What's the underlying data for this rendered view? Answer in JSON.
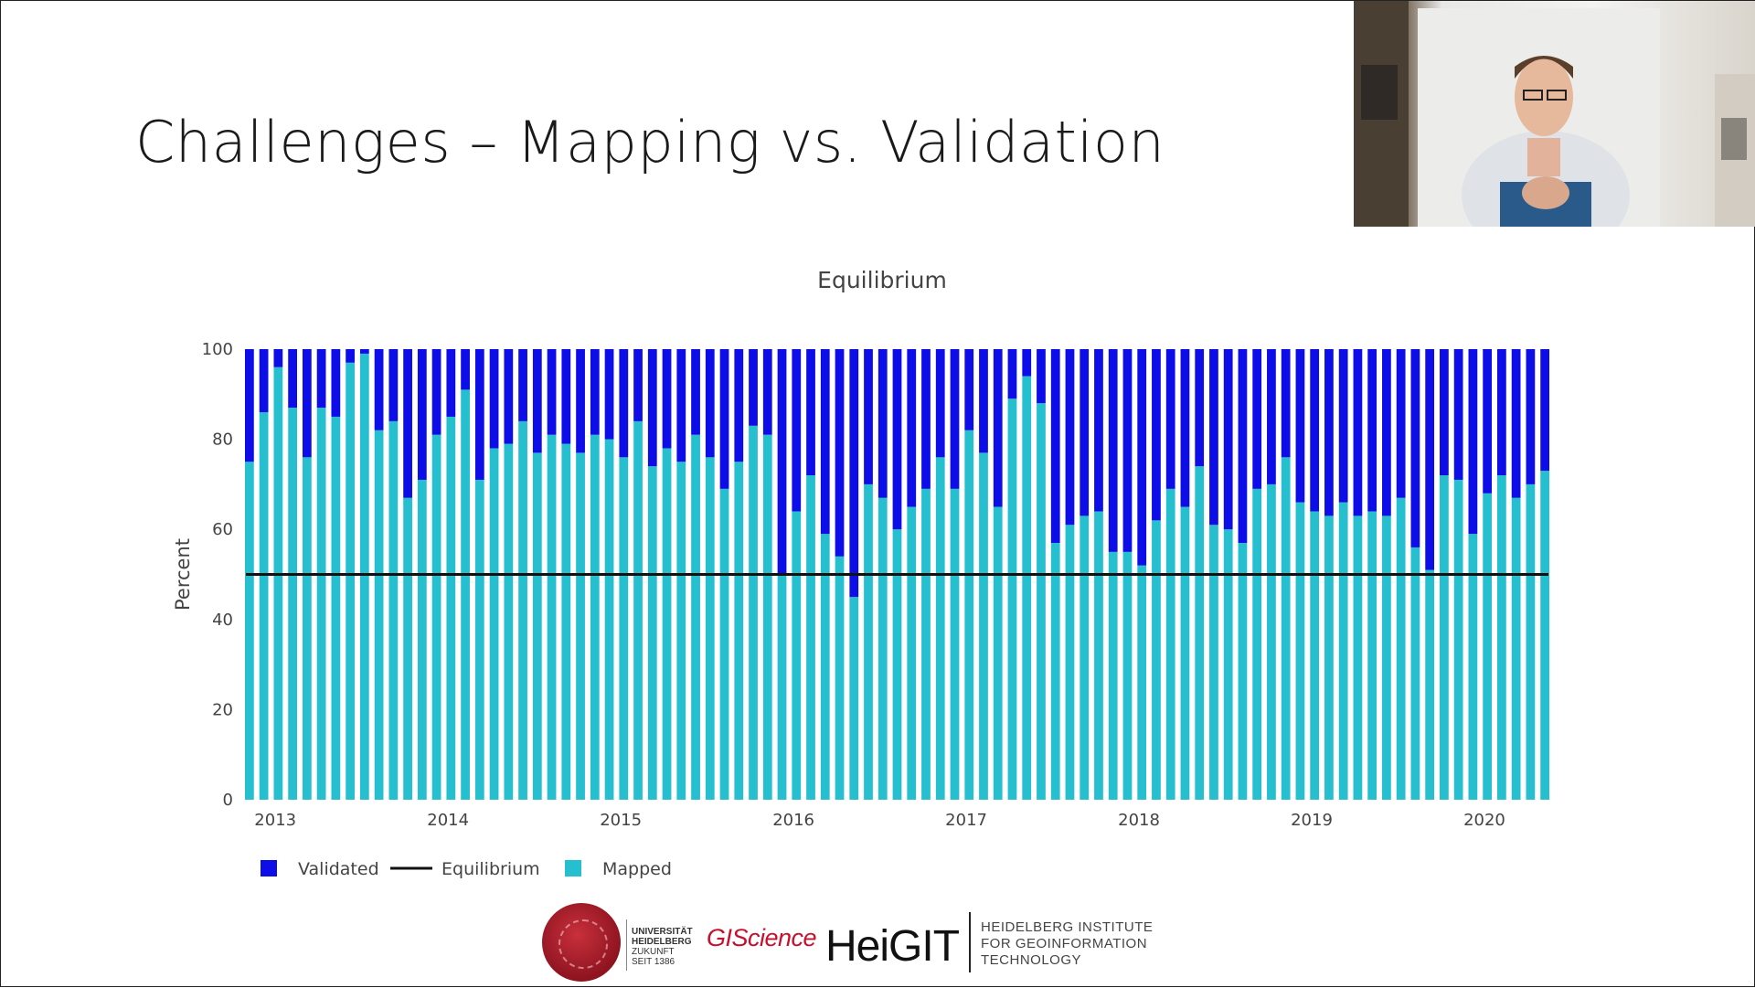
{
  "slide": {
    "title": "Challenges – Mapping vs. Validation"
  },
  "logos": {
    "uni_line1": "UNIVERSITÄT",
    "uni_line2": "HEIDELBERG",
    "uni_line3": "ZUKUNFT",
    "uni_line4": "SEIT 1386",
    "giscience": "GIScience",
    "heigit": "HeiGIT",
    "heigit_sub1": "HEIDELBERG INSTITUTE",
    "heigit_sub2": "FOR GEOINFORMATION",
    "heigit_sub3": "TECHNOLOGY"
  },
  "webcam": {
    "icon": "presenter-video-icon"
  },
  "chart_data": {
    "type": "bar",
    "stacked": true,
    "title": "Equilibrium",
    "xlabel": "",
    "ylabel": "Percent",
    "ylim": [
      0,
      100
    ],
    "yticks": [
      0,
      20,
      40,
      60,
      80,
      100
    ],
    "xticks": [
      "2013",
      "2014",
      "2015",
      "2016",
      "2017",
      "2018",
      "2019",
      "2020"
    ],
    "months_per_year": 12,
    "start_index_offset": 1.8,
    "colors": {
      "Validated": "#0d0de8",
      "Mapped": "#26bfcf",
      "Equilibrium": "#111111"
    },
    "series": [
      {
        "name": "Mapped",
        "values": [
          75,
          86,
          96,
          87,
          76,
          87,
          85,
          97,
          99,
          82,
          84,
          67,
          71,
          81,
          85,
          91,
          71,
          78,
          79,
          84,
          77,
          81,
          79,
          77,
          81,
          80,
          76,
          84,
          74,
          78,
          75,
          81,
          76,
          69,
          75,
          83,
          81,
          50,
          64,
          72,
          59,
          54,
          45,
          70,
          67,
          60,
          65,
          69,
          76,
          69,
          82,
          77,
          65,
          89,
          94,
          88,
          57,
          61,
          63,
          64,
          55,
          55,
          52,
          62,
          69,
          65,
          74,
          61,
          60,
          57,
          69,
          70,
          76,
          66,
          64,
          63,
          66,
          63,
          64,
          63,
          67,
          56,
          51,
          72,
          71,
          59,
          68,
          72,
          67,
          70,
          73
        ]
      },
      {
        "name": "Validated",
        "values": [
          25,
          14,
          4,
          13,
          24,
          13,
          15,
          3,
          1,
          18,
          16,
          33,
          29,
          19,
          15,
          9,
          29,
          22,
          21,
          16,
          23,
          19,
          21,
          23,
          19,
          20,
          24,
          16,
          26,
          22,
          25,
          19,
          24,
          31,
          25,
          17,
          19,
          50,
          36,
          28,
          41,
          46,
          55,
          30,
          33,
          40,
          35,
          31,
          24,
          31,
          18,
          23,
          35,
          11,
          6,
          12,
          43,
          39,
          37,
          36,
          45,
          45,
          48,
          38,
          31,
          35,
          26,
          39,
          40,
          43,
          31,
          30,
          24,
          34,
          36,
          37,
          34,
          37,
          36,
          37,
          33,
          44,
          49,
          28,
          29,
          41,
          32,
          28,
          33,
          30,
          27
        ]
      },
      {
        "name": "Equilibrium",
        "value": 50
      }
    ],
    "legend": [
      "Validated",
      "Equilibrium",
      "Mapped"
    ],
    "legend_position": "bottom-left"
  }
}
